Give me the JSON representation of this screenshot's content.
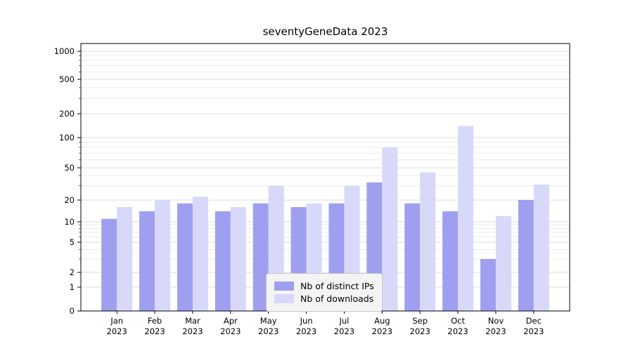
{
  "chart_data": {
    "type": "bar",
    "title": "seventyGeneData 2023",
    "categories": [
      "Jan",
      "Feb",
      "Mar",
      "Apr",
      "May",
      "Jun",
      "Jul",
      "Aug",
      "Sep",
      "Oct",
      "Nov",
      "Dec"
    ],
    "year": "2023",
    "series": [
      {
        "name": "Nb of distinct IPs",
        "color": "#9f9ff0",
        "values": [
          11,
          14,
          18,
          14,
          18,
          16,
          18,
          33,
          18,
          14,
          3,
          20
        ]
      },
      {
        "name": "Nb of downloads",
        "color": "#d8d8f8",
        "values": [
          16,
          20,
          22,
          16,
          30,
          18,
          30,
          80,
          44,
          140,
          12,
          31
        ]
      }
    ],
    "yticks": [
      0,
      1,
      2,
      5,
      10,
      20,
      50,
      100,
      200,
      500,
      1000
    ],
    "yscale": "symlog",
    "ylim": [
      0,
      1200
    ],
    "grid": true,
    "legend_position": "lower center",
    "colors": {
      "grid_major": "#dcdcdc",
      "grid_minor": "#ececec",
      "axis": "#000000"
    }
  }
}
